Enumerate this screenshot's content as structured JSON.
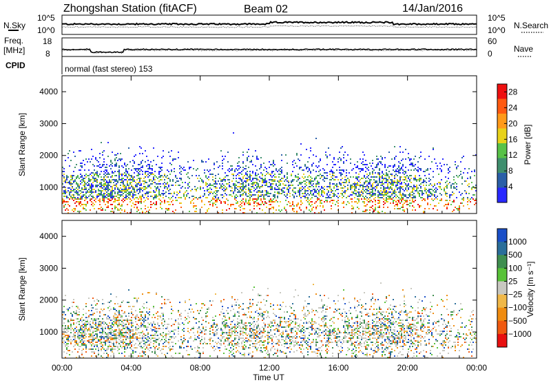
{
  "header": {
    "station": "Zhongshan Station (fitACF)",
    "beam": "Beam 02",
    "date": "14/Jan/2016"
  },
  "noise_panel": {
    "left_label": "N.Sky",
    "left_ticks": [
      "10^5",
      "10^0"
    ],
    "right_label": "N.Search",
    "right_ticks": [
      "10^5",
      "10^0"
    ]
  },
  "freq_panel": {
    "left_label_line1": "Freq.",
    "left_label_line2": "[MHz]",
    "left_ticks": [
      "18",
      "8"
    ],
    "right_label": "Nave",
    "right_ticks": [
      "60",
      "0"
    ]
  },
  "cpid_panel": {
    "label": "CPID",
    "mode_text": "normal (fast stereo) 153"
  },
  "chart_data": [
    {
      "type": "heatmap",
      "id": "power",
      "ylabel": "Slant Range [km]",
      "xlabel": "Time UT",
      "x_ticks": [
        "00:00",
        "04:00",
        "08:00",
        "12:00",
        "16:00",
        "20:00",
        "00:00"
      ],
      "x_range_hours": [
        0,
        24
      ],
      "y_ticks": [
        "1000",
        "2000",
        "3000",
        "4000"
      ],
      "y_range_km": [
        180,
        4500
      ],
      "colorbar": {
        "label": "Power [dB]",
        "ticks": [
          "4",
          "8",
          "12",
          "16",
          "20",
          "24",
          "28"
        ],
        "range": [
          0,
          30
        ],
        "colors": [
          "#2828ff",
          "#2a5fa8",
          "#3f8f6e",
          "#58c248",
          "#e8d21a",
          "#ff9a1a",
          "#ff5a10",
          "#ee1010"
        ]
      }
    },
    {
      "type": "heatmap",
      "id": "velocity",
      "ylabel": "Slant Range [km]",
      "xlabel": "Time UT",
      "x_ticks": [
        "00:00",
        "04:00",
        "08:00",
        "12:00",
        "16:00",
        "20:00",
        "00:00"
      ],
      "x_range_hours": [
        0,
        24
      ],
      "y_ticks": [
        "1000",
        "2000",
        "3000",
        "4000"
      ],
      "y_range_km": [
        180,
        4500
      ],
      "colorbar": {
        "label": "Velocity [m s⁻¹]",
        "ticks": [
          "1000",
          "500",
          "100",
          "25",
          "−25",
          "−100",
          "−500",
          "−1000"
        ],
        "colors": [
          "#1a4fc8",
          "#2a6e9a",
          "#3f8f50",
          "#58c238",
          "#c8c8c0",
          "#f0b848",
          "#f08c10",
          "#f05a10",
          "#e81010"
        ]
      }
    }
  ],
  "x_axis": {
    "label": "Time UT"
  }
}
